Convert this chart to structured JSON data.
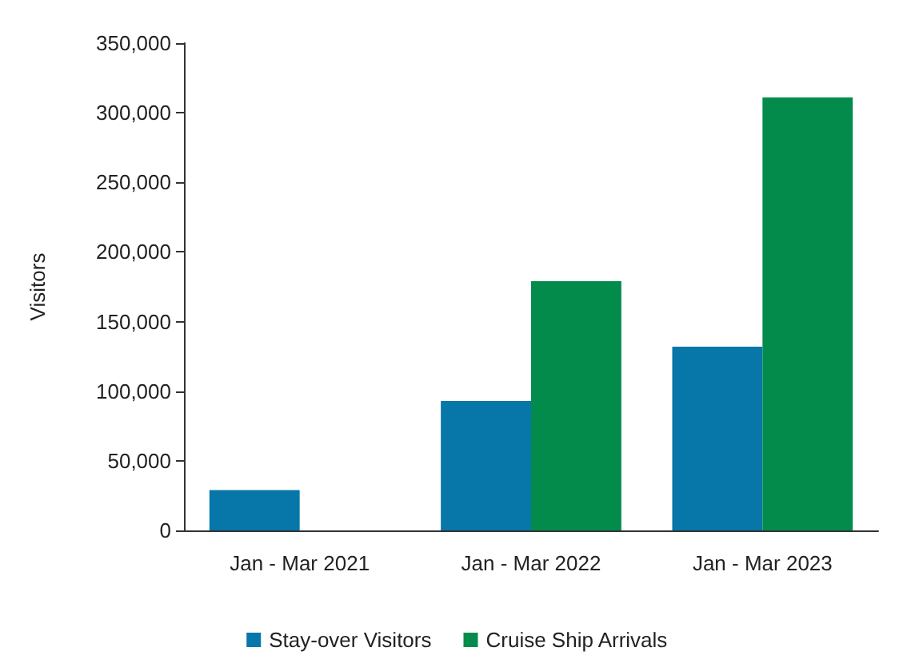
{
  "chart_data": {
    "type": "bar",
    "ylabel": "Visitors",
    "categories": [
      "Jan - Mar 2021",
      "Jan - Mar 2022",
      "Jan - Mar 2023"
    ],
    "series": [
      {
        "name": "Stay-over Visitors",
        "color": "#0776a8",
        "values": [
          29000,
          93000,
          132000
        ]
      },
      {
        "name": "Cruise Ship Arrivals",
        "color": "#038b4c",
        "values": [
          0,
          179000,
          311000
        ]
      }
    ],
    "ylim": [
      0,
      350000
    ],
    "yticks": [
      0,
      {
        "value": 50000,
        "label": "50,000"
      },
      {
        "value": 100000,
        "label": "100,000"
      },
      {
        "value": 150000,
        "label": "150,000"
      },
      {
        "value": 200000,
        "label": "200,000"
      },
      {
        "value": 250000,
        "label": "250,000"
      },
      {
        "value": 300000,
        "label": "300,000"
      },
      {
        "value": 350000,
        "label": "350,000"
      }
    ],
    "grid": false,
    "legend": "bottom"
  }
}
